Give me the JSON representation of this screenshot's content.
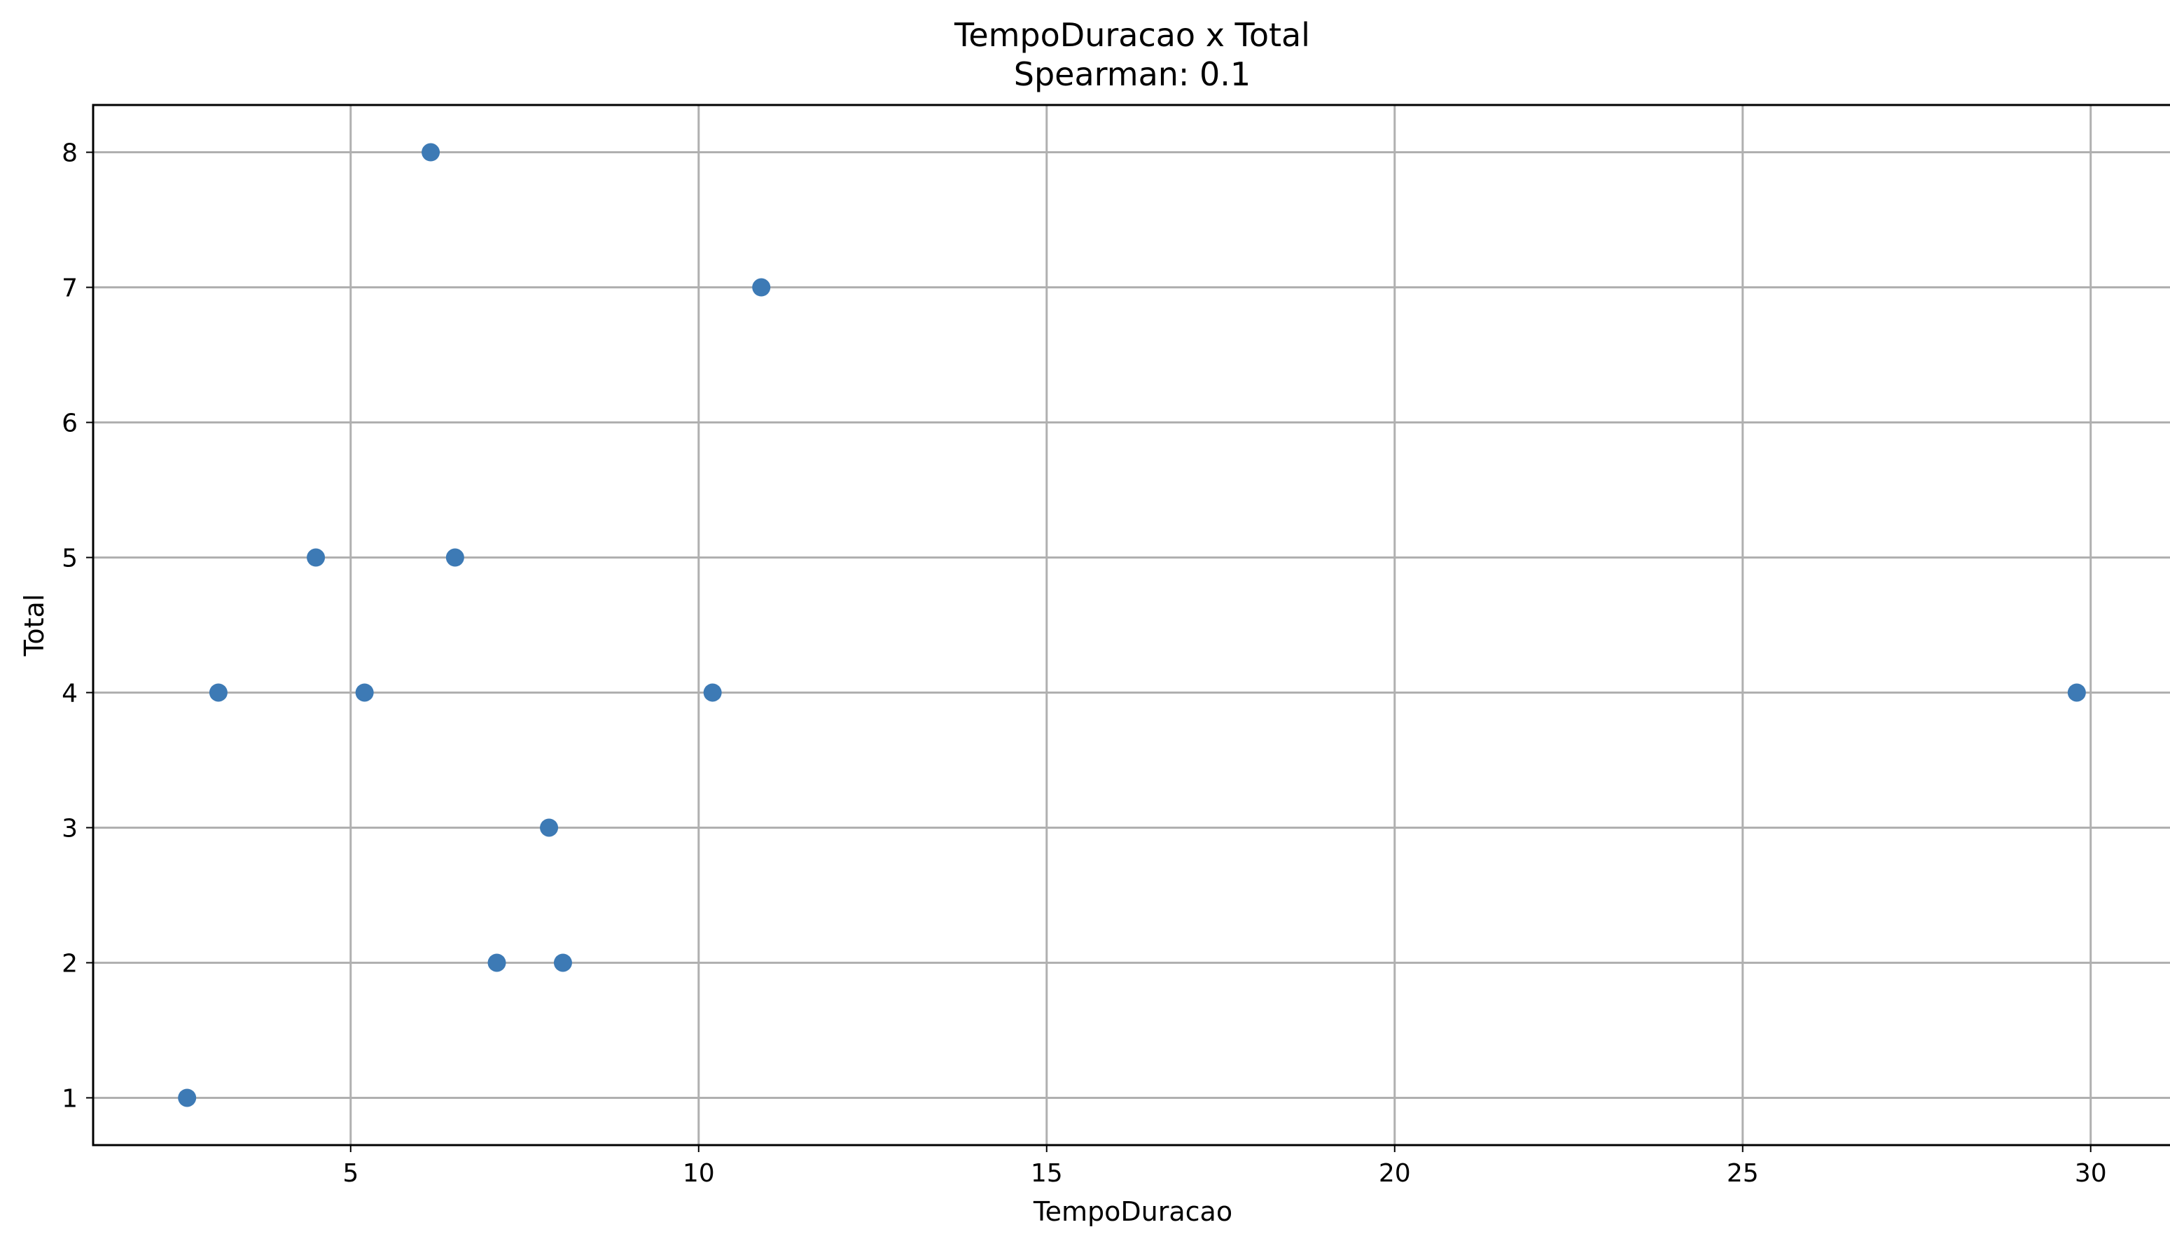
{
  "chart_data": {
    "type": "scatter",
    "title": "TempoDuracao x Total",
    "subtitle": "Spearman: 0.1",
    "xlabel": "TempoDuracao",
    "ylabel": "Total",
    "xlim": [
      1.3,
      31.2
    ],
    "ylim": [
      0.65,
      8.35
    ],
    "xticks": [
      5,
      10,
      15,
      20,
      25,
      30
    ],
    "yticks": [
      1,
      2,
      3,
      4,
      5,
      6,
      7,
      8
    ],
    "grid": true,
    "marker_color": "#3d7ab5",
    "points": [
      {
        "x": 6.15,
        "y": 8
      },
      {
        "x": 10.9,
        "y": 7
      },
      {
        "x": 4.5,
        "y": 5
      },
      {
        "x": 6.5,
        "y": 5
      },
      {
        "x": 3.1,
        "y": 4
      },
      {
        "x": 5.2,
        "y": 4
      },
      {
        "x": 10.2,
        "y": 4
      },
      {
        "x": 29.8,
        "y": 4
      },
      {
        "x": 7.85,
        "y": 3
      },
      {
        "x": 7.1,
        "y": 2
      },
      {
        "x": 8.05,
        "y": 2
      },
      {
        "x": 2.65,
        "y": 1
      }
    ]
  }
}
